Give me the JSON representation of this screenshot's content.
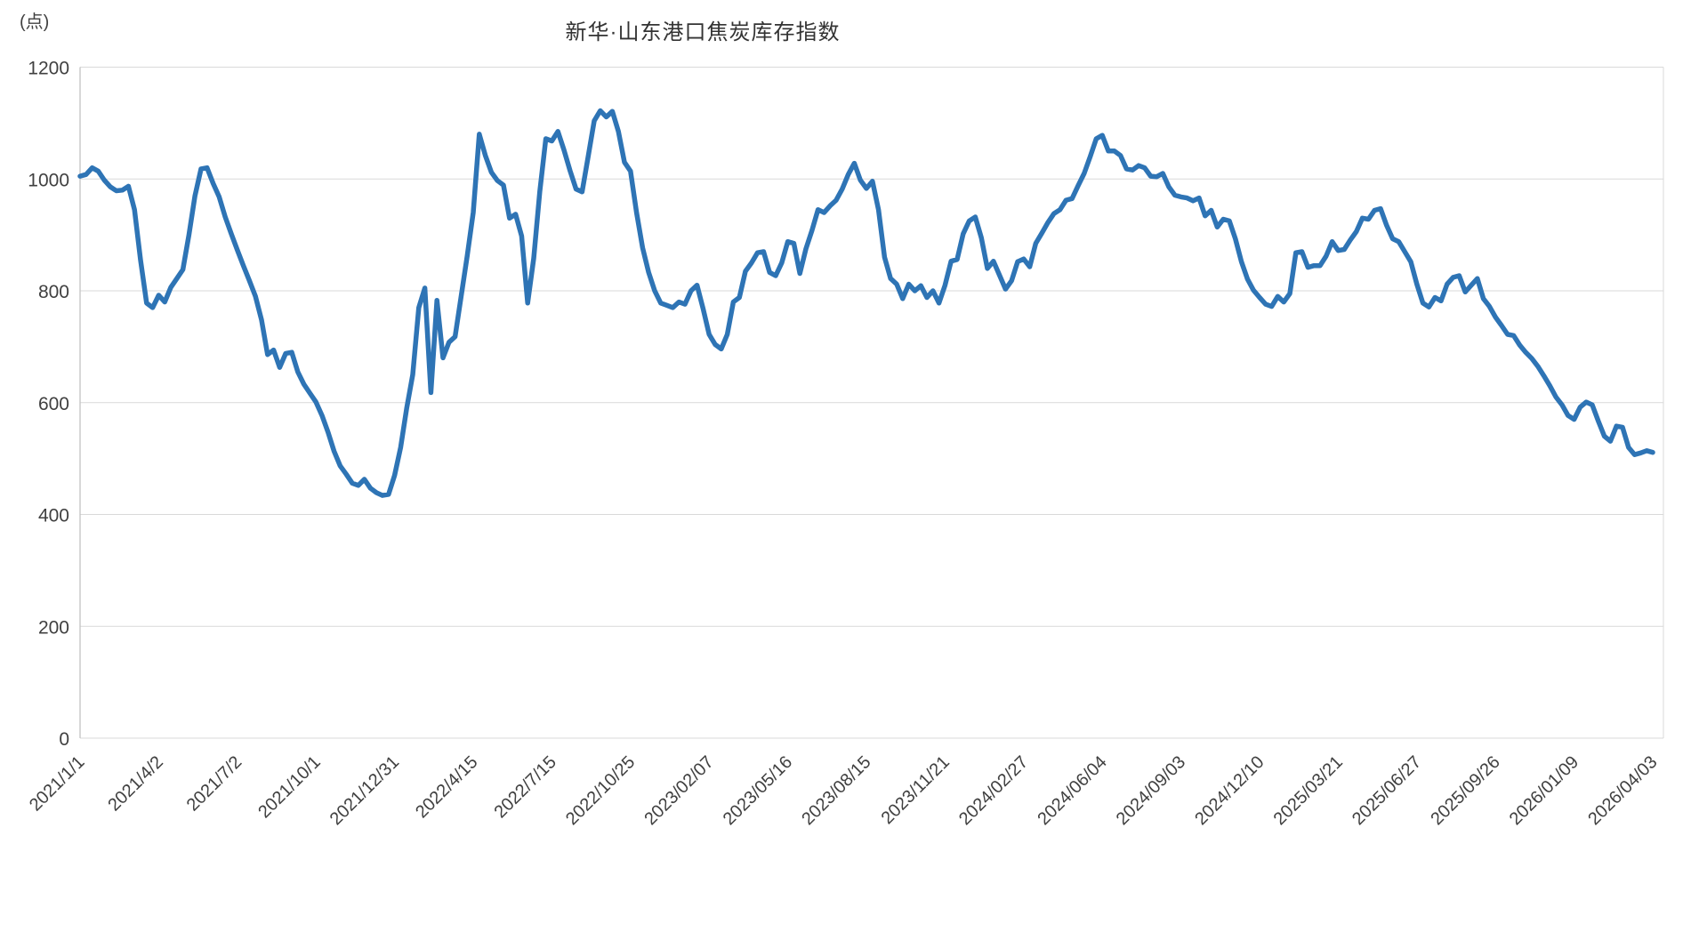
{
  "chart_data": {
    "type": "line",
    "title": "新华·山东港口焦炭库存指数",
    "unit": "(点)",
    "line_color": "#2E74B5",
    "grid_color": "#D9D9D9",
    "axis_color": "#BFBFBF",
    "text_color": "#404040",
    "ylim": [
      0,
      1200
    ],
    "y_ticks": [
      0,
      200,
      400,
      600,
      800,
      1000,
      1200
    ],
    "x_label_interval": 13,
    "x_tick_labels": [
      "2021/1/1",
      "2021/4/2",
      "2021/7/2",
      "2021/10/1",
      "2021/12/31",
      "2022/4/15",
      "2022/7/15",
      "2022/10/25",
      "2023/02/07",
      "2023/05/16",
      "2023/08/15",
      "2023/11/21",
      "2024/02/27",
      "2024/06/04",
      "2024/09/03",
      "2024/12/10",
      "2025/03/21",
      "2025/06/27",
      "2025/09/26",
      "2026/01/09",
      "2026/04/03"
    ],
    "values": [
      1005,
      1008,
      1020,
      1014,
      998,
      986,
      979,
      980,
      987,
      945,
      855,
      778,
      770,
      792,
      780,
      806,
      822,
      838,
      900,
      970,
      1018,
      1020,
      992,
      968,
      932,
      902,
      873,
      845,
      818,
      790,
      748,
      686,
      694,
      663,
      688,
      690,
      655,
      633,
      617,
      601,
      577,
      547,
      513,
      487,
      472,
      456,
      452,
      463,
      447,
      439,
      434,
      436,
      470,
      520,
      590,
      650,
      770,
      805,
      618,
      783,
      680,
      708,
      718,
      790,
      862,
      940,
      1080,
      1042,
      1012,
      997,
      989,
      930,
      937,
      898,
      778,
      858,
      977,
      1072,
      1068,
      1085,
      1052,
      1015,
      982,
      977,
      1040,
      1104,
      1122,
      1111,
      1121,
      1085,
      1030,
      1014,
      940,
      877,
      833,
      800,
      778,
      774,
      770,
      780,
      776,
      800,
      810,
      768,
      722,
      704,
      696,
      722,
      780,
      788,
      835,
      850,
      868,
      870,
      833,
      827,
      850,
      888,
      885,
      831,
      875,
      908,
      945,
      940,
      952,
      962,
      982,
      1008,
      1028,
      998,
      983,
      996,
      945,
      860,
      822,
      812,
      786,
      812,
      800,
      809,
      788,
      800,
      778,
      810,
      853,
      856,
      902,
      925,
      932,
      895,
      840,
      853,
      828,
      803,
      818,
      852,
      857,
      843,
      885,
      903,
      922,
      938,
      945,
      962,
      965,
      988,
      1010,
      1040,
      1072,
      1078,
      1050,
      1050,
      1042,
      1018,
      1016,
      1024,
      1020,
      1005,
      1004,
      1010,
      986,
      971,
      968,
      966,
      961,
      966,
      934,
      944,
      914,
      928,
      925,
      893,
      852,
      821,
      801,
      788,
      776,
      772,
      790,
      780,
      795,
      868,
      870,
      842,
      845,
      845,
      862,
      888,
      872,
      874,
      891,
      906,
      930,
      928,
      944,
      947,
      917,
      893,
      888,
      870,
      852,
      812,
      778,
      771,
      788,
      782,
      812,
      824,
      827,
      798,
      810,
      822,
      786,
      772,
      753,
      738,
      722,
      720,
      703,
      690,
      679,
      665,
      648,
      630,
      610,
      596,
      577,
      570,
      592,
      601,
      596,
      567,
      540,
      531,
      558,
      556,
      520,
      507,
      510,
      514,
      511
    ]
  }
}
